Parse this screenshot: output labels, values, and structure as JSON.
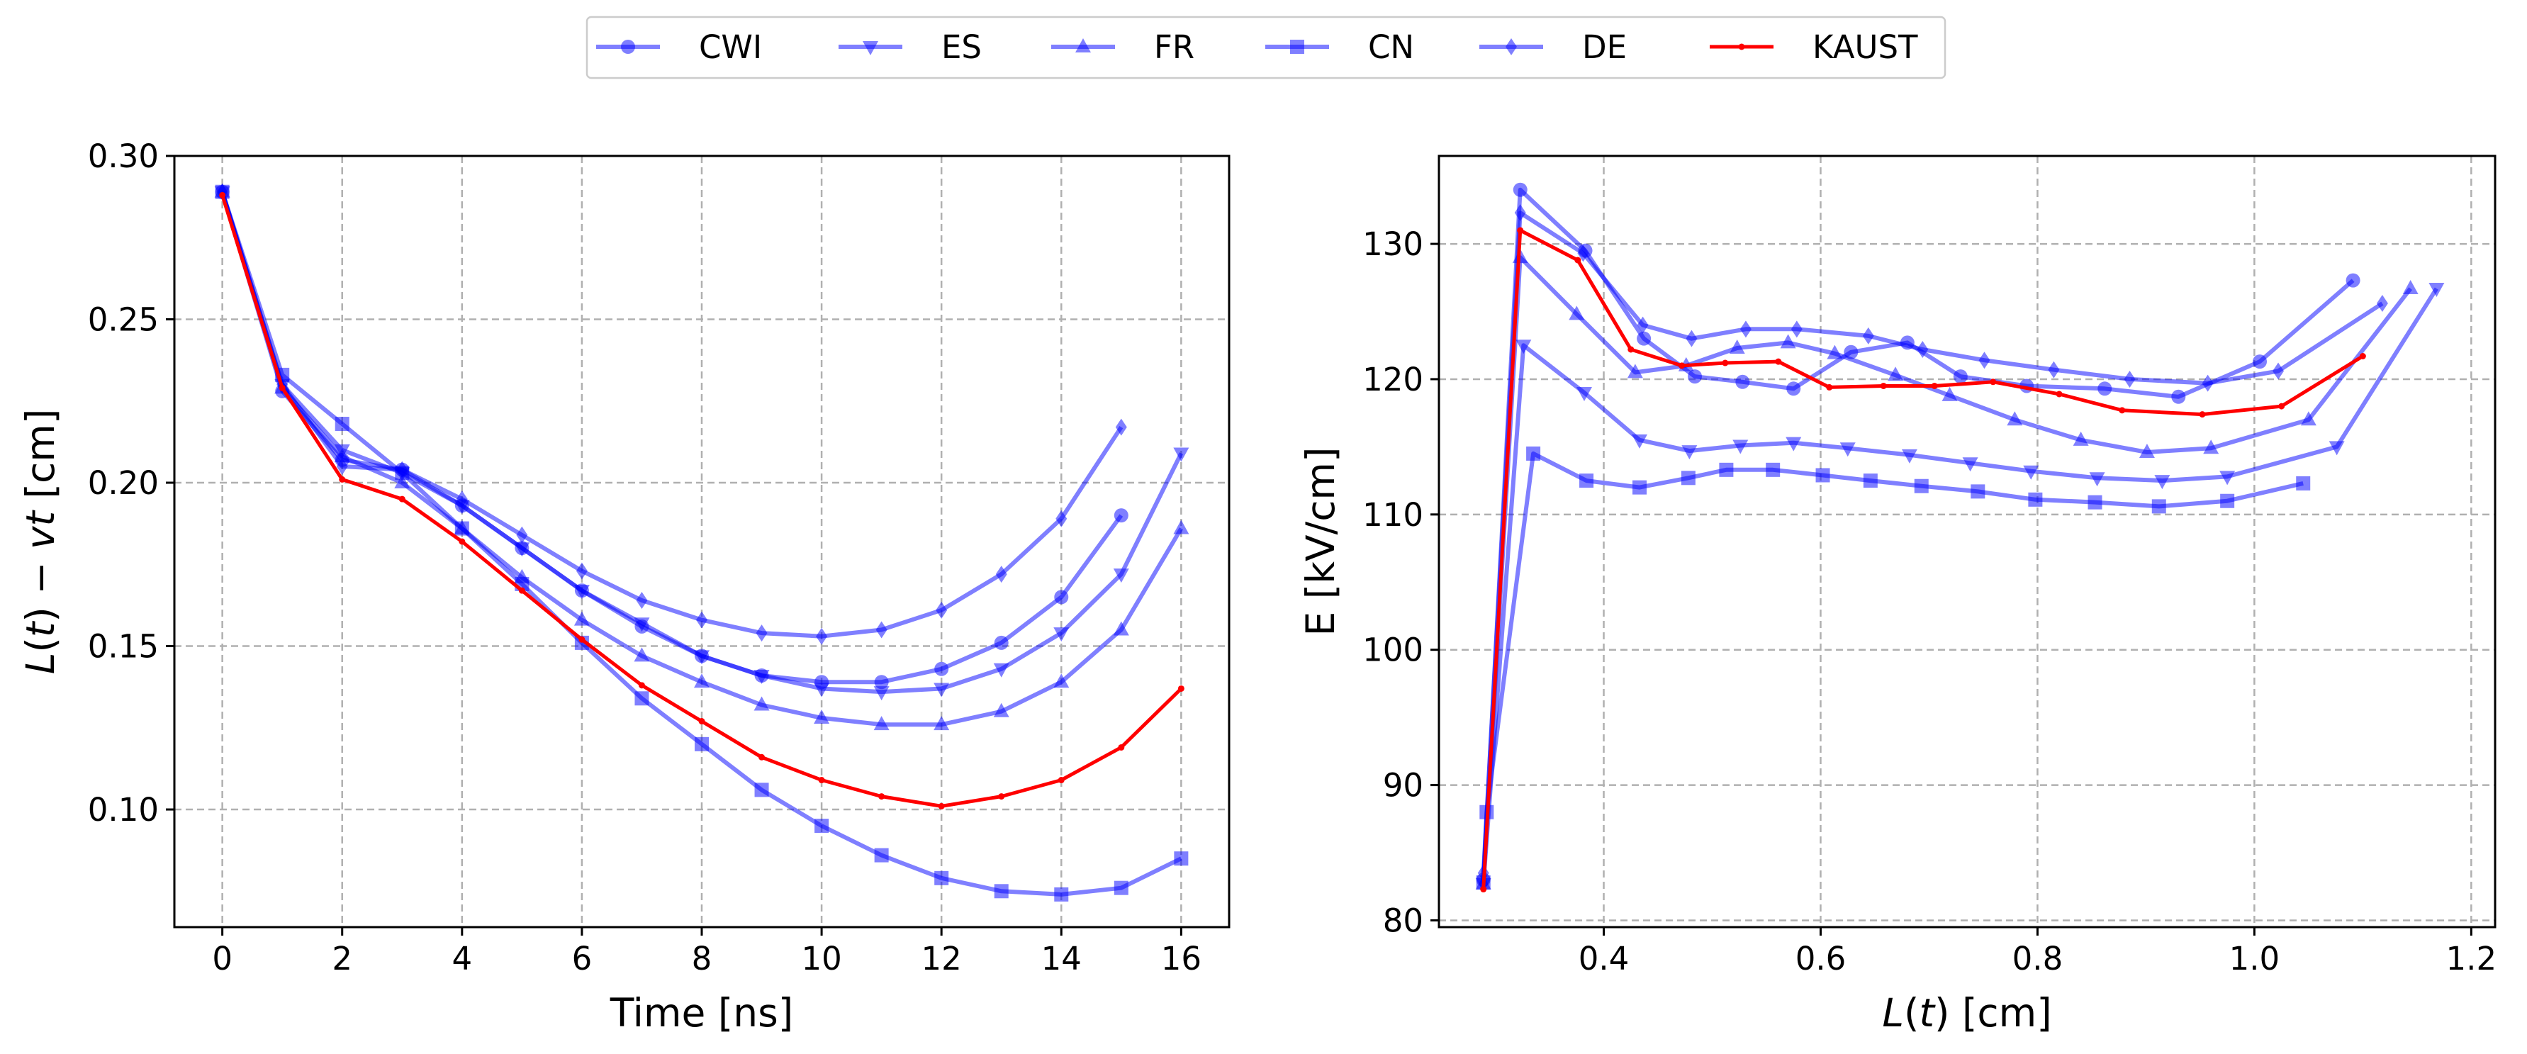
{
  "legend": {
    "placement": "top-center",
    "entries": [
      {
        "label": "CWI",
        "marker": "circle",
        "color": "#0000ff"
      },
      {
        "label": "ES",
        "marker": "triangle-down",
        "color": "#0000ff"
      },
      {
        "label": "FR",
        "marker": "triangle-up",
        "color": "#0000ff"
      },
      {
        "label": "CN",
        "marker": "square",
        "color": "#0000ff"
      },
      {
        "label": "DE",
        "marker": "diamond",
        "color": "#0000ff"
      },
      {
        "label": "KAUST",
        "marker": "point",
        "color": "#ff0000"
      }
    ]
  },
  "chart_data": [
    {
      "type": "line",
      "title": "",
      "xlabel": "Time [ns]",
      "ylabel_parts": [
        "L",
        "(",
        "t",
        ") − ",
        "vt",
        " [cm]"
      ],
      "xlim": [
        -0.8,
        16.8
      ],
      "ylim": [
        0.064,
        0.3
      ],
      "xticks": [
        0,
        2,
        4,
        6,
        8,
        10,
        12,
        14,
        16
      ],
      "xtick_labels": [
        "0",
        "2",
        "4",
        "6",
        "8",
        "10",
        "12",
        "14",
        "16"
      ],
      "yticks": [
        0.1,
        0.15,
        0.2,
        0.25,
        0.3
      ],
      "ytick_labels": [
        "0.10",
        "0.15",
        "0.20",
        "0.25",
        "0.30"
      ],
      "grid": true,
      "series": [
        {
          "name": "CWI",
          "marker": "circle",
          "color": "#0000ff",
          "x": [
            0,
            1,
            2,
            3,
            4,
            5,
            6,
            7,
            8,
            9,
            10,
            11,
            12,
            13,
            14,
            15
          ],
          "y": [
            0.289,
            0.228,
            0.207,
            0.204,
            0.193,
            0.18,
            0.167,
            0.156,
            0.147,
            0.141,
            0.139,
            0.139,
            0.143,
            0.151,
            0.165,
            0.19
          ]
        },
        {
          "name": "ES",
          "marker": "triangle-down",
          "color": "#0000ff",
          "x": [
            0,
            1,
            2,
            3,
            4,
            5,
            6,
            7,
            8,
            9,
            10,
            11,
            12,
            13,
            14,
            15,
            16
          ],
          "y": [
            0.289,
            0.23,
            0.21,
            0.203,
            0.193,
            0.18,
            0.167,
            0.157,
            0.147,
            0.141,
            0.137,
            0.136,
            0.137,
            0.143,
            0.154,
            0.172,
            0.209
          ]
        },
        {
          "name": "FR",
          "marker": "triangle-up",
          "color": "#0000ff",
          "x": [
            0,
            1,
            2,
            3,
            4,
            5,
            6,
            7,
            8,
            9,
            10,
            11,
            12,
            13,
            14,
            15,
            16
          ],
          "y": [
            0.289,
            0.229,
            0.208,
            0.2,
            0.186,
            0.171,
            0.158,
            0.147,
            0.139,
            0.132,
            0.128,
            0.126,
            0.126,
            0.13,
            0.139,
            0.155,
            0.186
          ]
        },
        {
          "name": "CN",
          "marker": "square",
          "color": "#0000ff",
          "x": [
            0,
            1,
            2,
            3,
            4,
            5,
            6,
            7,
            8,
            9,
            10,
            11,
            12,
            13,
            14,
            15,
            16
          ],
          "y": [
            0.289,
            0.233,
            0.218,
            0.203,
            0.186,
            0.169,
            0.151,
            0.134,
            0.12,
            0.106,
            0.095,
            0.086,
            0.079,
            0.075,
            0.074,
            0.076,
            0.085
          ]
        },
        {
          "name": "DE",
          "marker": "diamond",
          "color": "#0000ff",
          "x": [
            0,
            1,
            2,
            3,
            4,
            5,
            6,
            7,
            8,
            9,
            10,
            11,
            12,
            13,
            14,
            15
          ],
          "y": [
            0.289,
            0.23,
            0.205,
            0.204,
            0.195,
            0.184,
            0.173,
            0.164,
            0.158,
            0.154,
            0.153,
            0.155,
            0.161,
            0.172,
            0.189,
            0.217
          ]
        },
        {
          "name": "KAUST",
          "marker": "point",
          "color": "#ff0000",
          "x": [
            0,
            1,
            2,
            3,
            4,
            5,
            6,
            7,
            8,
            9,
            10,
            11,
            12,
            13,
            14,
            15,
            16
          ],
          "y": [
            0.288,
            0.229,
            0.201,
            0.195,
            0.182,
            0.167,
            0.152,
            0.138,
            0.127,
            0.116,
            0.109,
            0.104,
            0.101,
            0.104,
            0.109,
            0.119,
            0.137
          ]
        }
      ]
    },
    {
      "type": "line",
      "title": "",
      "xlabel_parts": [
        "L",
        "(",
        "t",
        ") [cm]"
      ],
      "ylabel": "E [kV/cm]",
      "xlim": [
        0.248,
        1.222
      ],
      "ylim": [
        79.5,
        136.5
      ],
      "xticks": [
        0.4,
        0.6,
        0.8,
        1.0,
        1.2
      ],
      "xtick_labels": [
        "0.4",
        "0.6",
        "0.8",
        "1.0",
        "1.2"
      ],
      "yticks": [
        80,
        90,
        100,
        110,
        120,
        130
      ],
      "ytick_labels": [
        "80",
        "90",
        "100",
        "110",
        "120",
        "130"
      ],
      "grid": true,
      "series": [
        {
          "name": "CWI",
          "marker": "circle",
          "color": "#0000ff",
          "x": [
            0.289,
            0.323,
            0.383,
            0.437,
            0.484,
            0.528,
            0.575,
            0.628,
            0.68,
            0.729,
            0.79,
            0.862,
            0.93,
            1.005,
            1.091
          ],
          "y": [
            83.0,
            134.0,
            129.5,
            123.0,
            120.2,
            119.8,
            119.3,
            122.0,
            122.7,
            120.2,
            119.5,
            119.3,
            118.7,
            121.3,
            127.3
          ]
        },
        {
          "name": "ES",
          "marker": "triangle-down",
          "color": "#0000ff",
          "x": [
            0.289,
            0.326,
            0.382,
            0.433,
            0.479,
            0.526,
            0.575,
            0.625,
            0.682,
            0.738,
            0.794,
            0.855,
            0.915,
            0.975,
            1.076,
            1.168
          ],
          "y": [
            82.7,
            122.5,
            119.0,
            115.5,
            114.7,
            115.1,
            115.3,
            114.9,
            114.4,
            113.8,
            113.2,
            112.7,
            112.5,
            112.8,
            115.0,
            126.7
          ]
        },
        {
          "name": "FR",
          "marker": "triangle-up",
          "color": "#0000ff",
          "x": [
            0.289,
            0.323,
            0.375,
            0.429,
            0.476,
            0.523,
            0.57,
            0.613,
            0.669,
            0.719,
            0.779,
            0.84,
            0.901,
            0.96,
            1.05,
            1.144
          ],
          "y": [
            82.7,
            129.0,
            124.8,
            120.5,
            121.0,
            122.3,
            122.7,
            121.9,
            120.3,
            118.8,
            117.0,
            115.5,
            114.6,
            114.9,
            117.0,
            126.7
          ]
        },
        {
          "name": "CN",
          "marker": "square",
          "color": "#0000ff",
          "x": [
            0.289,
            0.292,
            0.335,
            0.384,
            0.433,
            0.478,
            0.513,
            0.556,
            0.602,
            0.646,
            0.693,
            0.745,
            0.798,
            0.853,
            0.912,
            0.975,
            1.045
          ],
          "y": [
            82.8,
            88.0,
            114.5,
            112.5,
            112.0,
            112.7,
            113.3,
            113.3,
            112.9,
            112.5,
            112.1,
            111.7,
            111.1,
            110.9,
            110.6,
            111.0,
            112.3
          ]
        },
        {
          "name": "DE",
          "marker": "diamond",
          "color": "#0000ff",
          "x": [
            0.289,
            0.323,
            0.381,
            0.436,
            0.481,
            0.531,
            0.578,
            0.644,
            0.694,
            0.751,
            0.815,
            0.885,
            0.957,
            1.022,
            1.118
          ],
          "y": [
            83.5,
            132.3,
            129.3,
            124.0,
            123.0,
            123.7,
            123.7,
            123.2,
            122.2,
            121.4,
            120.7,
            120.0,
            119.7,
            120.6,
            125.6
          ]
        },
        {
          "name": "KAUST",
          "marker": "point",
          "color": "#ff0000",
          "x": [
            0.289,
            0.323,
            0.376,
            0.425,
            0.472,
            0.512,
            0.561,
            0.608,
            0.658,
            0.705,
            0.759,
            0.82,
            0.878,
            0.952,
            1.025,
            1.1
          ],
          "y": [
            82.3,
            131.0,
            128.8,
            122.2,
            121.0,
            121.2,
            121.3,
            119.4,
            119.5,
            119.5,
            119.8,
            118.9,
            117.7,
            117.4,
            118.0,
            121.7
          ]
        }
      ]
    }
  ]
}
